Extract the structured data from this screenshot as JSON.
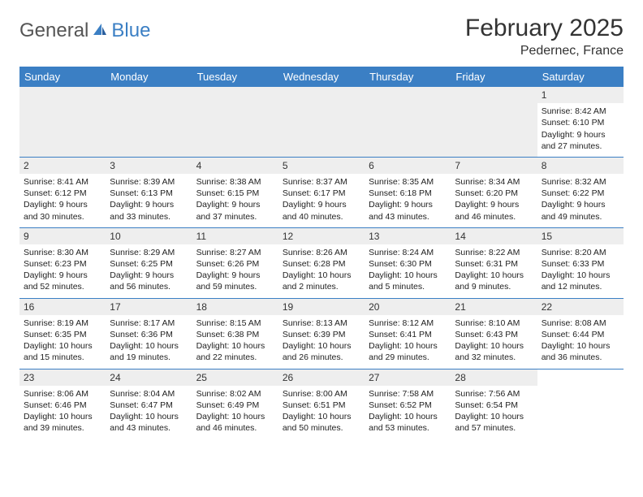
{
  "logo": {
    "text1": "General",
    "text2": "Blue"
  },
  "title": "February 2025",
  "location": "Pedernec, France",
  "day_headers": [
    "Sunday",
    "Monday",
    "Tuesday",
    "Wednesday",
    "Thursday",
    "Friday",
    "Saturday"
  ],
  "colors": {
    "header_bg": "#3b7fc4",
    "header_text": "#ffffff",
    "daynum_bg": "#eeeeee",
    "divider": "#3b7fc4",
    "text": "#222222",
    "logo_gray": "#555555",
    "logo_blue": "#3b7fc4"
  },
  "typography": {
    "title_fontsize": 30,
    "location_fontsize": 16,
    "header_fontsize": 13,
    "cell_fontsize": 10.5,
    "logo_fontsize": 24
  },
  "weeks": [
    [
      null,
      null,
      null,
      null,
      null,
      null,
      {
        "d": "1",
        "sr": "Sunrise: 8:42 AM",
        "ss": "Sunset: 6:10 PM",
        "dl1": "Daylight: 9 hours",
        "dl2": "and 27 minutes."
      }
    ],
    [
      {
        "d": "2",
        "sr": "Sunrise: 8:41 AM",
        "ss": "Sunset: 6:12 PM",
        "dl1": "Daylight: 9 hours",
        "dl2": "and 30 minutes."
      },
      {
        "d": "3",
        "sr": "Sunrise: 8:39 AM",
        "ss": "Sunset: 6:13 PM",
        "dl1": "Daylight: 9 hours",
        "dl2": "and 33 minutes."
      },
      {
        "d": "4",
        "sr": "Sunrise: 8:38 AM",
        "ss": "Sunset: 6:15 PM",
        "dl1": "Daylight: 9 hours",
        "dl2": "and 37 minutes."
      },
      {
        "d": "5",
        "sr": "Sunrise: 8:37 AM",
        "ss": "Sunset: 6:17 PM",
        "dl1": "Daylight: 9 hours",
        "dl2": "and 40 minutes."
      },
      {
        "d": "6",
        "sr": "Sunrise: 8:35 AM",
        "ss": "Sunset: 6:18 PM",
        "dl1": "Daylight: 9 hours",
        "dl2": "and 43 minutes."
      },
      {
        "d": "7",
        "sr": "Sunrise: 8:34 AM",
        "ss": "Sunset: 6:20 PM",
        "dl1": "Daylight: 9 hours",
        "dl2": "and 46 minutes."
      },
      {
        "d": "8",
        "sr": "Sunrise: 8:32 AM",
        "ss": "Sunset: 6:22 PM",
        "dl1": "Daylight: 9 hours",
        "dl2": "and 49 minutes."
      }
    ],
    [
      {
        "d": "9",
        "sr": "Sunrise: 8:30 AM",
        "ss": "Sunset: 6:23 PM",
        "dl1": "Daylight: 9 hours",
        "dl2": "and 52 minutes."
      },
      {
        "d": "10",
        "sr": "Sunrise: 8:29 AM",
        "ss": "Sunset: 6:25 PM",
        "dl1": "Daylight: 9 hours",
        "dl2": "and 56 minutes."
      },
      {
        "d": "11",
        "sr": "Sunrise: 8:27 AM",
        "ss": "Sunset: 6:26 PM",
        "dl1": "Daylight: 9 hours",
        "dl2": "and 59 minutes."
      },
      {
        "d": "12",
        "sr": "Sunrise: 8:26 AM",
        "ss": "Sunset: 6:28 PM",
        "dl1": "Daylight: 10 hours",
        "dl2": "and 2 minutes."
      },
      {
        "d": "13",
        "sr": "Sunrise: 8:24 AM",
        "ss": "Sunset: 6:30 PM",
        "dl1": "Daylight: 10 hours",
        "dl2": "and 5 minutes."
      },
      {
        "d": "14",
        "sr": "Sunrise: 8:22 AM",
        "ss": "Sunset: 6:31 PM",
        "dl1": "Daylight: 10 hours",
        "dl2": "and 9 minutes."
      },
      {
        "d": "15",
        "sr": "Sunrise: 8:20 AM",
        "ss": "Sunset: 6:33 PM",
        "dl1": "Daylight: 10 hours",
        "dl2": "and 12 minutes."
      }
    ],
    [
      {
        "d": "16",
        "sr": "Sunrise: 8:19 AM",
        "ss": "Sunset: 6:35 PM",
        "dl1": "Daylight: 10 hours",
        "dl2": "and 15 minutes."
      },
      {
        "d": "17",
        "sr": "Sunrise: 8:17 AM",
        "ss": "Sunset: 6:36 PM",
        "dl1": "Daylight: 10 hours",
        "dl2": "and 19 minutes."
      },
      {
        "d": "18",
        "sr": "Sunrise: 8:15 AM",
        "ss": "Sunset: 6:38 PM",
        "dl1": "Daylight: 10 hours",
        "dl2": "and 22 minutes."
      },
      {
        "d": "19",
        "sr": "Sunrise: 8:13 AM",
        "ss": "Sunset: 6:39 PM",
        "dl1": "Daylight: 10 hours",
        "dl2": "and 26 minutes."
      },
      {
        "d": "20",
        "sr": "Sunrise: 8:12 AM",
        "ss": "Sunset: 6:41 PM",
        "dl1": "Daylight: 10 hours",
        "dl2": "and 29 minutes."
      },
      {
        "d": "21",
        "sr": "Sunrise: 8:10 AM",
        "ss": "Sunset: 6:43 PM",
        "dl1": "Daylight: 10 hours",
        "dl2": "and 32 minutes."
      },
      {
        "d": "22",
        "sr": "Sunrise: 8:08 AM",
        "ss": "Sunset: 6:44 PM",
        "dl1": "Daylight: 10 hours",
        "dl2": "and 36 minutes."
      }
    ],
    [
      {
        "d": "23",
        "sr": "Sunrise: 8:06 AM",
        "ss": "Sunset: 6:46 PM",
        "dl1": "Daylight: 10 hours",
        "dl2": "and 39 minutes."
      },
      {
        "d": "24",
        "sr": "Sunrise: 8:04 AM",
        "ss": "Sunset: 6:47 PM",
        "dl1": "Daylight: 10 hours",
        "dl2": "and 43 minutes."
      },
      {
        "d": "25",
        "sr": "Sunrise: 8:02 AM",
        "ss": "Sunset: 6:49 PM",
        "dl1": "Daylight: 10 hours",
        "dl2": "and 46 minutes."
      },
      {
        "d": "26",
        "sr": "Sunrise: 8:00 AM",
        "ss": "Sunset: 6:51 PM",
        "dl1": "Daylight: 10 hours",
        "dl2": "and 50 minutes."
      },
      {
        "d": "27",
        "sr": "Sunrise: 7:58 AM",
        "ss": "Sunset: 6:52 PM",
        "dl1": "Daylight: 10 hours",
        "dl2": "and 53 minutes."
      },
      {
        "d": "28",
        "sr": "Sunrise: 7:56 AM",
        "ss": "Sunset: 6:54 PM",
        "dl1": "Daylight: 10 hours",
        "dl2": "and 57 minutes."
      },
      null
    ]
  ]
}
